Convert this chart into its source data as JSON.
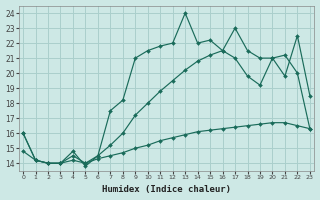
{
  "xlabel": "Humidex (Indice chaleur)",
  "bg_color": "#cde8e5",
  "grid_color": "#aacfcc",
  "line_color": "#1a6b5a",
  "xlim": [
    -0.3,
    23.3
  ],
  "ylim": [
    13.5,
    24.5
  ],
  "xtick_vals": [
    0,
    1,
    2,
    3,
    4,
    5,
    6,
    7,
    8,
    9,
    10,
    11,
    12,
    13,
    14,
    15,
    16,
    17,
    18,
    19,
    20,
    21,
    22,
    23
  ],
  "ytick_vals": [
    14,
    15,
    16,
    17,
    18,
    19,
    20,
    21,
    22,
    23,
    24
  ],
  "line1_x": [
    0,
    1,
    2,
    3,
    4,
    5,
    6,
    7,
    8,
    9,
    10,
    11,
    12,
    13,
    14,
    15,
    16,
    17,
    18,
    19,
    20,
    21,
    22,
    23
  ],
  "line1_y": [
    16.0,
    14.2,
    14.0,
    14.0,
    14.8,
    13.8,
    14.5,
    17.5,
    18.2,
    21.0,
    21.5,
    21.8,
    22.0,
    24.0,
    22.0,
    22.2,
    21.5,
    23.0,
    21.5,
    21.0,
    21.0,
    19.8,
    22.5,
    18.5
  ],
  "line2_x": [
    0,
    1,
    2,
    3,
    4,
    5,
    6,
    7,
    8,
    9,
    10,
    11,
    12,
    13,
    14,
    15,
    16,
    17,
    18,
    19,
    20,
    21,
    22,
    23
  ],
  "line2_y": [
    16.0,
    14.2,
    14.0,
    14.0,
    14.5,
    14.0,
    14.5,
    15.2,
    16.0,
    17.2,
    18.0,
    18.8,
    19.5,
    20.2,
    20.8,
    21.2,
    21.5,
    21.0,
    19.8,
    19.2,
    21.0,
    21.2,
    20.0,
    16.3
  ],
  "line3_x": [
    0,
    1,
    2,
    3,
    4,
    5,
    6,
    7,
    8,
    9,
    10,
    11,
    12,
    13,
    14,
    15,
    16,
    17,
    18,
    19,
    20,
    21,
    22,
    23
  ],
  "line3_y": [
    14.8,
    14.2,
    14.0,
    14.0,
    14.2,
    14.0,
    14.3,
    14.5,
    14.7,
    15.0,
    15.2,
    15.5,
    15.7,
    15.9,
    16.1,
    16.2,
    16.3,
    16.4,
    16.5,
    16.6,
    16.7,
    16.7,
    16.5,
    16.3
  ]
}
